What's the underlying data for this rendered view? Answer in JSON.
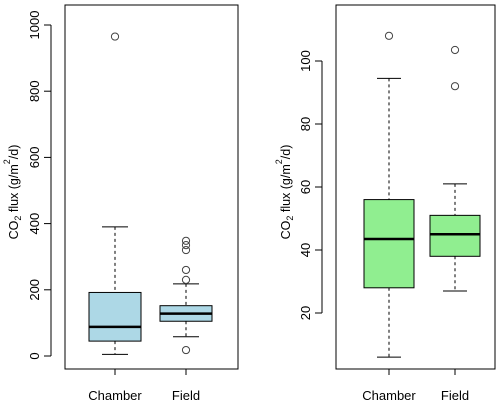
{
  "chart_data": [
    {
      "type": "boxplot",
      "title": "",
      "xlabel": "",
      "ylabel": "CO2 flux (g/m2/d)",
      "ylim": [
        0,
        1000
      ],
      "yticks": [
        0,
        200,
        400,
        600,
        800,
        1000
      ],
      "grid": false,
      "box_color": "#add8e6",
      "categories": [
        "Chamber",
        "Field"
      ],
      "boxes": [
        {
          "name": "Chamber",
          "whisker_low": 5,
          "q1": 45,
          "median": 88,
          "q3": 192,
          "whisker_high": 390,
          "outliers": [
            965
          ]
        },
        {
          "name": "Field",
          "whisker_low": 58,
          "q1": 105,
          "median": 128,
          "q3": 152,
          "whisker_high": 218,
          "outliers": [
            18,
            230,
            260,
            320,
            335,
            348
          ]
        }
      ]
    },
    {
      "type": "boxplot",
      "title": "",
      "xlabel": "",
      "ylabel": "CO2 flux (g/m2/d)",
      "ylim": [
        5,
        108
      ],
      "yticks": [
        20,
        40,
        60,
        80,
        100
      ],
      "grid": false,
      "box_color": "#90ee90",
      "categories": [
        "Chamber",
        "Field"
      ],
      "boxes": [
        {
          "name": "Chamber",
          "whisker_low": 6,
          "q1": 28,
          "median": 43.5,
          "q3": 56,
          "whisker_high": 94.5,
          "outliers": [
            108
          ]
        },
        {
          "name": "Field",
          "whisker_low": 27,
          "q1": 38,
          "median": 45,
          "q3": 51,
          "whisker_high": 61,
          "outliers": [
            92,
            103.5
          ]
        }
      ]
    }
  ]
}
